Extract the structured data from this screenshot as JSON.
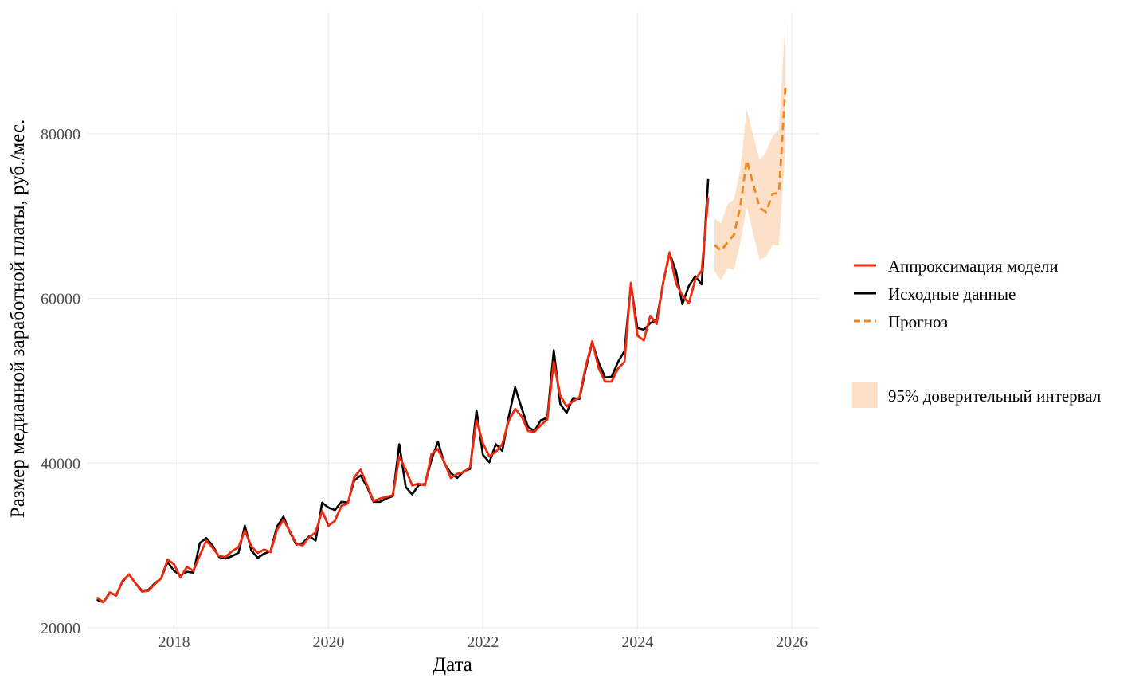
{
  "chart_data": {
    "type": "line",
    "title": "",
    "xlabel": "Дата",
    "ylabel": "Размер медианной заработной платы, руб./мес.",
    "x_tick_labels": [
      "2018",
      "2020",
      "2022",
      "2024",
      "2026"
    ],
    "y_tick_labels": [
      "20000",
      "40000",
      "60000",
      "80000"
    ],
    "xlim": [
      2016.88,
      2026.35
    ],
    "ylim": [
      19800,
      94800
    ],
    "grid": true,
    "legend_position": "right",
    "history_start": "2017-01",
    "forecast_start": "2025-01",
    "series": [
      {
        "name": "Исходные данные",
        "color": "#000000",
        "values": [
          23400,
          23100,
          24200,
          24000,
          25600,
          26500,
          25400,
          24500,
          24600,
          25400,
          26000,
          28000,
          26900,
          26400,
          26800,
          26700,
          30300,
          30900,
          30000,
          28600,
          28400,
          28700,
          29100,
          32400,
          29400,
          28500,
          29000,
          29300,
          32300,
          33500,
          31600,
          30100,
          30300,
          31100,
          30600,
          35200,
          34600,
          34300,
          35300,
          35200,
          37900,
          38500,
          37100,
          35300,
          35300,
          35700,
          36000,
          42300,
          37100,
          36200,
          37300,
          37500,
          40400,
          42600,
          40000,
          38800,
          38200,
          39000,
          39300,
          46400,
          41000,
          40100,
          42300,
          41500,
          45600,
          49200,
          46700,
          44400,
          43900,
          45200,
          45500,
          53700,
          47200,
          46100,
          47900,
          47800,
          51500,
          54700,
          52200,
          50400,
          50500,
          52300,
          53600,
          61800,
          56400,
          56200,
          57000,
          57400,
          61800,
          65500,
          63300,
          59300,
          61500,
          62700,
          61700,
          74500
        ]
      },
      {
        "name": "Аппроксимация модели",
        "color": "#ee2a0f",
        "values": [
          23700,
          23100,
          24300,
          23900,
          25700,
          26500,
          25400,
          24400,
          24500,
          25300,
          26000,
          28300,
          27700,
          26100,
          27400,
          26900,
          28800,
          30600,
          29700,
          28700,
          28600,
          29300,
          29800,
          31800,
          29900,
          29100,
          29500,
          29200,
          31900,
          33100,
          31700,
          30200,
          30000,
          31000,
          31600,
          34200,
          32400,
          33000,
          34800,
          35100,
          38300,
          39200,
          37300,
          35400,
          35700,
          35900,
          36100,
          40800,
          39200,
          37300,
          37500,
          37300,
          41100,
          41700,
          40100,
          38200,
          38700,
          38900,
          39500,
          45200,
          42400,
          40800,
          41400,
          42300,
          45100,
          46600,
          45700,
          43900,
          43800,
          44600,
          45300,
          52300,
          48200,
          46900,
          47500,
          48000,
          51800,
          54800,
          51500,
          49900,
          49900,
          51500,
          52300,
          61900,
          55500,
          54900,
          57900,
          56900,
          61900,
          65600,
          61800,
          60400,
          59400,
          62300,
          63400,
          72300
        ]
      },
      {
        "name": "Прогноз",
        "color": "#f2861c",
        "values": [
          66500,
          65800,
          66800,
          67700,
          71200,
          76800,
          73900,
          71000,
          70500,
          72700,
          72800,
          85600
        ]
      }
    ],
    "confidence_interval": {
      "name": "95% доверительный интервал",
      "color": "#fde0c8",
      "lower": [
        63300,
        62200,
        63700,
        63500,
        66700,
        71100,
        67800,
        64700,
        65100,
        66500,
        66400,
        78000
      ],
      "upper": [
        69700,
        69100,
        71400,
        72000,
        75600,
        83000,
        79800,
        76800,
        77800,
        79700,
        80500,
        94000
      ]
    }
  }
}
